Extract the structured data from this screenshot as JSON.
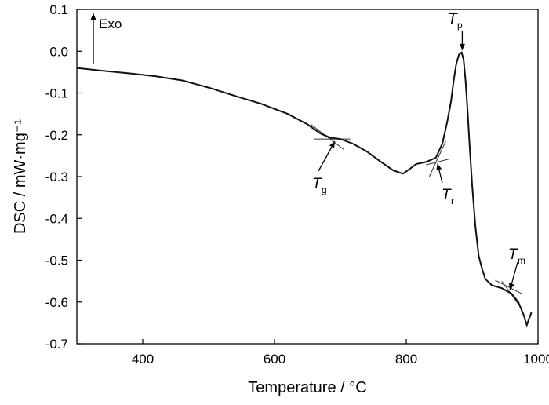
{
  "chart_data": {
    "type": "line",
    "xlabel": "Temperature / °C",
    "ylabel": "DSC / mW·mg⁻¹",
    "xlim": [
      300,
      1000
    ],
    "ylim": [
      -0.7,
      0.1
    ],
    "grid": false,
    "x_ticks": [
      400,
      600,
      800,
      1000
    ],
    "x_tick_labels": [
      "400",
      "600",
      "800",
      "1000"
    ],
    "y_ticks": [
      0.1,
      0.0,
      -0.1,
      -0.2,
      -0.3,
      -0.4,
      -0.5,
      -0.6,
      -0.7
    ],
    "y_tick_labels": [
      "0.1",
      "0.0",
      "-0.1",
      "-0.2",
      "-0.3",
      "-0.4",
      "-0.5",
      "-0.6",
      "-0.7"
    ],
    "series": [
      {
        "x": [
          300,
          340,
          380,
          420,
          460,
          500,
          540,
          580,
          620,
          650,
          670,
          685,
          700,
          720,
          740,
          760,
          780,
          795,
          805,
          815,
          830,
          845,
          855,
          862,
          868,
          872,
          876,
          880,
          884,
          887,
          890,
          893,
          896,
          900,
          905,
          910,
          915,
          920,
          930,
          945,
          960,
          970,
          978,
          983,
          990
        ],
        "y": [
          -0.04,
          -0.047,
          -0.053,
          -0.06,
          -0.07,
          -0.087,
          -0.107,
          -0.126,
          -0.15,
          -0.175,
          -0.197,
          -0.207,
          -0.21,
          -0.222,
          -0.24,
          -0.263,
          -0.285,
          -0.293,
          -0.282,
          -0.27,
          -0.265,
          -0.255,
          -0.22,
          -0.17,
          -0.12,
          -0.07,
          -0.03,
          -0.008,
          -0.003,
          -0.02,
          -0.07,
          -0.14,
          -0.22,
          -0.32,
          -0.42,
          -0.49,
          -0.52,
          -0.545,
          -0.56,
          -0.567,
          -0.58,
          -0.6,
          -0.63,
          -0.655,
          -0.625
        ]
      }
    ],
    "annotations": {
      "exo": "Exo",
      "tg": {
        "label": "T",
        "sub": "g",
        "x": 694,
        "y": -0.21
      },
      "tr": {
        "label": "T",
        "sub": "r",
        "x": 845,
        "y": -0.265
      },
      "tp": {
        "label": "T",
        "sub": "p",
        "x": 885,
        "y": -0.003
      },
      "tm": {
        "label": "T",
        "sub": "m",
        "x": 955,
        "y": -0.575
      }
    },
    "colors": {
      "line": "#111111",
      "axis": "#000000"
    }
  }
}
